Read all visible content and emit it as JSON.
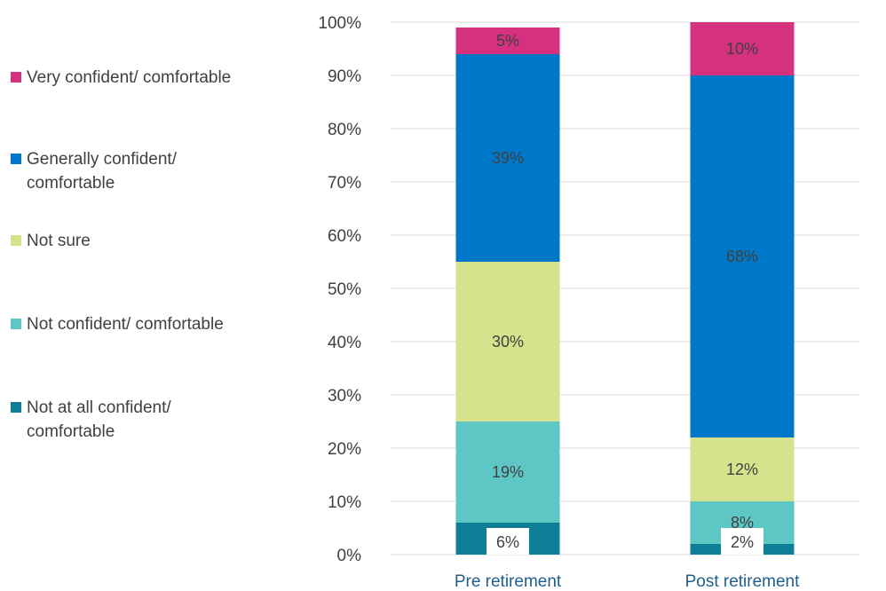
{
  "chart_data": {
    "type": "bar",
    "stacked": true,
    "categories": [
      "Pre retirement",
      "Post retirement"
    ],
    "series": [
      {
        "name": "Not at all confident/ comfortable",
        "values": [
          6,
          2
        ],
        "labels": [
          "6%",
          "2%"
        ],
        "color": "#0e7d96"
      },
      {
        "name": "Not confident/ comfortable",
        "values": [
          19,
          8
        ],
        "labels": [
          "19%",
          "8%"
        ],
        "color": "#5ec6c4"
      },
      {
        "name": "Not sure",
        "values": [
          30,
          12
        ],
        "labels": [
          "30%",
          "12%"
        ],
        "color": "#d4e38c"
      },
      {
        "name": "Generally confident/ comfortable",
        "values": [
          39,
          68
        ],
        "labels": [
          "39%",
          "68%"
        ],
        "color": "#0077c8"
      },
      {
        "name": "Very confident/ comfortable",
        "values": [
          5,
          10
        ],
        "labels": [
          "5%",
          "10%"
        ],
        "color": "#d6317f"
      }
    ],
    "legend": {
      "position": "left",
      "order": [
        "Very confident/ comfortable",
        "Generally confident/ comfortable",
        "Not sure",
        "Not confident/ comfortable",
        "Not at all confident/ comfortable"
      ],
      "lines": [
        [
          "Very confident/ comfortable"
        ],
        [
          "Generally confident/",
          "comfortable"
        ],
        [
          "Not sure"
        ],
        [
          "Not confident/ comfortable"
        ],
        [
          "Not at all confident/",
          "comfortable"
        ]
      ]
    },
    "yticks": [
      "0%",
      "10%",
      "20%",
      "30%",
      "40%",
      "50%",
      "60%",
      "70%",
      "80%",
      "90%",
      "100%"
    ],
    "ylim": [
      0,
      100
    ],
    "grid": true,
    "title": "",
    "xlabel": "",
    "ylabel": ""
  }
}
